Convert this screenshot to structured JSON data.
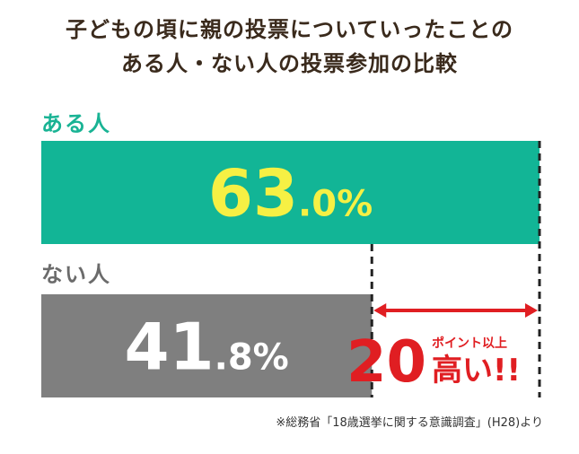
{
  "title_line1": "子どもの頃に親の投票についていったことの",
  "title_line2": "ある人・ない人の投票参加の比較",
  "chart_data": {
    "type": "bar",
    "orientation": "horizontal",
    "categories": [
      "ある人",
      "ない人"
    ],
    "values": [
      63.0,
      41.8
    ],
    "value_labels": [
      "63.0%",
      "41.8%"
    ],
    "colors": [
      "#12b596",
      "#7f7f7f"
    ],
    "value_label_colors": [
      "#f6f044",
      "#ffffff"
    ],
    "difference_label_big": "20",
    "difference_label_small": "ポイント以上",
    "difference_label_suffix": "高い!!",
    "difference_color": "#e01e22"
  },
  "source_note": "※総務省「18歳選挙に関する意識調査」(H28)より"
}
